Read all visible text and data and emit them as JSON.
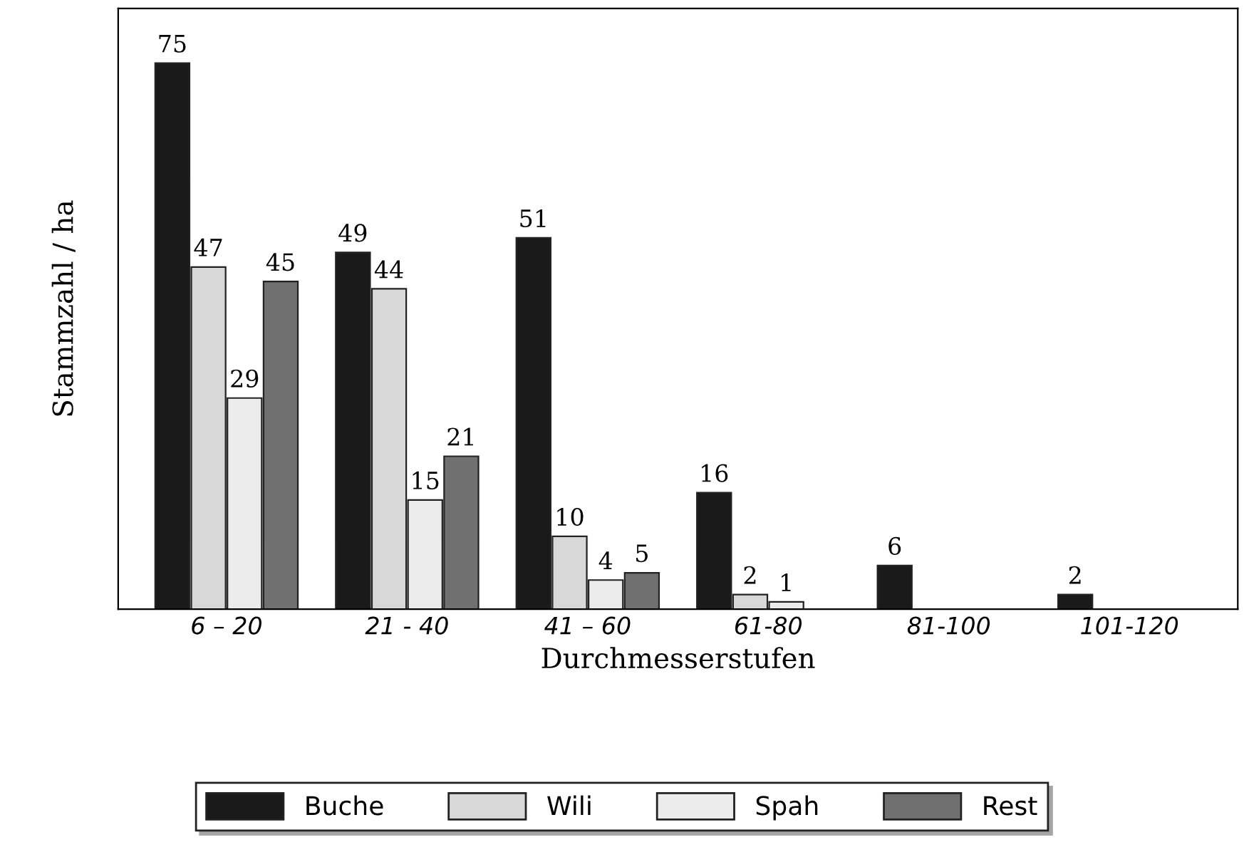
{
  "chart_data": {
    "type": "bar",
    "xlabel": "Durchmesserstufen",
    "ylabel": "Stammzahl / ha",
    "categories": [
      "6 – 20",
      "21 - 40",
      "41 – 60",
      "61-80",
      "81-100",
      "101-120"
    ],
    "series": [
      {
        "name": "Buche",
        "color": "#1a1a1a",
        "values": [
          75,
          49,
          51,
          16,
          6,
          2
        ]
      },
      {
        "name": "Wili",
        "color": "#d8d8d8",
        "values": [
          47,
          44,
          10,
          2,
          null,
          null
        ]
      },
      {
        "name": "Spah",
        "color": "#ececec",
        "values": [
          29,
          15,
          4,
          1,
          null,
          null
        ]
      },
      {
        "name": "Rest",
        "color": "#707070",
        "values": [
          45,
          21,
          5,
          null,
          null,
          null
        ]
      }
    ],
    "data_labels": true,
    "grid": false,
    "legend": "bottom"
  }
}
